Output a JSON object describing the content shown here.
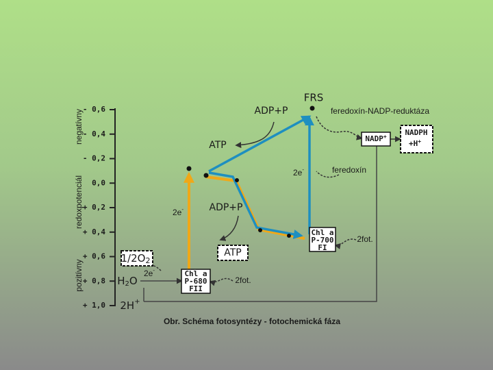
{
  "axis": {
    "side_labels": {
      "negative": "negatívny",
      "middle": "redoxpotenciál",
      "positive": "pozitívny"
    },
    "ticks": [
      "- 0,6",
      "- 0,4",
      "- 0,2",
      "0,0",
      "+ 0,2",
      "+ 0,4",
      "+ 0,6",
      "+ 0,8",
      "+ 1,0"
    ]
  },
  "labels": {
    "frs": "FRS",
    "adp_top": "ADP+P",
    "reductase": "feredoxín-NADP-reduktáza",
    "nadp": {
      "base": "NADP",
      "sup": "+"
    },
    "nadph": {
      "line1": "NADPH",
      "line2_base": "+H",
      "line2_sup": "+"
    },
    "atp_top": "ATP",
    "e_right": {
      "base": "2e",
      "sup": "-"
    },
    "ferredoxin": "feredoxín",
    "e_left": {
      "base": "2e",
      "sup": "-"
    },
    "adp_mid": "ADP+P",
    "ps1": {
      "line1": "Chl a",
      "line2": "P-700",
      "line3": "FI"
    },
    "photons_ps1": "2fot.",
    "atp_mid": "ATP",
    "oxygen": {
      "base": "1/2O",
      "sub": "2"
    },
    "e_water": {
      "base": "2e",
      "sup": "-"
    },
    "water": {
      "base": "H",
      "sub": "2",
      "end": "O"
    },
    "ps2": {
      "line1": "Chl a",
      "line2": "P-680",
      "line3": "FII"
    },
    "photons_ps2": "2fot.",
    "protons": {
      "base": "2H",
      "sup": "+"
    }
  },
  "caption": "Obr. Schéma fotosyntézy - fotochemická fáza"
}
